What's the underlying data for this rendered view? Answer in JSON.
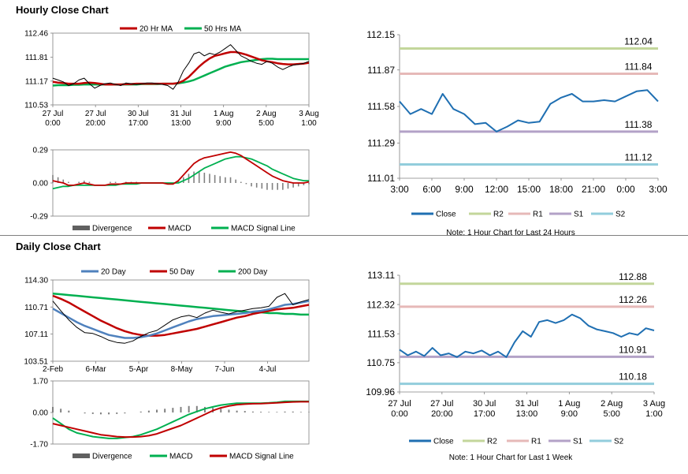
{
  "page": {
    "title_hourly": "Hourly Close Chart",
    "title_daily": "Daily Close Chart"
  },
  "colors": {
    "close": "#1f6fb2",
    "ma_red": "#c00000",
    "ma_green": "#00b050",
    "ma_blue": "#4f81bd",
    "r2": "#c3d69b",
    "r1": "#e6b9b8",
    "s1": "#b3a2c7",
    "s2": "#92cddc",
    "divergence": "#808080"
  },
  "chart_data": [
    {
      "id": "hourly_price_ma",
      "type": "line",
      "legend": [
        "20 Hr MA",
        "50 Hrs MA"
      ],
      "yticks": [
        "112.46",
        "111.81",
        "111.17",
        "110.53"
      ],
      "ylim": [
        110.53,
        112.46
      ],
      "xticks": [
        [
          "27 Jul",
          "0:00"
        ],
        [
          "27 Jul",
          "20:00"
        ],
        [
          "30 Jul",
          "17:00"
        ],
        [
          "31 Jul",
          "13:00"
        ],
        [
          "1 Aug",
          "9:00"
        ],
        [
          "2 Aug",
          "5:00"
        ],
        [
          "3 Aug",
          "1:00"
        ]
      ],
      "series": [
        {
          "name": "Close",
          "values": [
            111.25,
            111.2,
            111.15,
            111.05,
            111.1,
            111.2,
            111.25,
            111.1,
            110.98,
            111.05,
            111.1,
            111.12,
            111.08,
            111.05,
            111.12,
            111.1,
            111.08,
            111.1,
            111.12,
            111.12,
            111.1,
            111.08,
            111.05,
            110.95,
            111.15,
            111.45,
            111.65,
            111.9,
            111.95,
            111.85,
            111.92,
            111.88,
            111.95,
            112.05,
            112.15,
            112.0,
            111.85,
            111.78,
            111.7,
            111.65,
            111.62,
            111.7,
            111.65,
            111.55,
            111.48,
            111.55,
            111.6,
            111.62,
            111.65,
            111.7
          ]
        },
        {
          "name": "20 Hr MA",
          "values": [
            111.15,
            111.13,
            111.12,
            111.1,
            111.1,
            111.1,
            111.12,
            111.13,
            111.12,
            111.1,
            111.08,
            111.08,
            111.08,
            111.08,
            111.09,
            111.09,
            111.1,
            111.1,
            111.1,
            111.1,
            111.1,
            111.1,
            111.1,
            111.1,
            111.12,
            111.18,
            111.28,
            111.42,
            111.56,
            111.68,
            111.78,
            111.85,
            111.88,
            111.92,
            111.95,
            111.95,
            111.92,
            111.88,
            111.83,
            111.78,
            111.73,
            111.7,
            111.68,
            111.65,
            111.63,
            111.62,
            111.62,
            111.63,
            111.64,
            111.66
          ]
        },
        {
          "name": "50 Hrs MA",
          "values": [
            111.05,
            111.06,
            111.06,
            111.06,
            111.07,
            111.07,
            111.08,
            111.08,
            111.08,
            111.08,
            111.08,
            111.08,
            111.08,
            111.08,
            111.08,
            111.08,
            111.08,
            111.09,
            111.09,
            111.09,
            111.09,
            111.1,
            111.1,
            111.1,
            111.11,
            111.13,
            111.16,
            111.2,
            111.26,
            111.32,
            111.38,
            111.44,
            111.5,
            111.56,
            111.6,
            111.64,
            111.68,
            111.7,
            111.72,
            111.74,
            111.76,
            111.77,
            111.77,
            111.76,
            111.76,
            111.76,
            111.76,
            111.76,
            111.76,
            111.76
          ]
        }
      ]
    },
    {
      "id": "hourly_macd",
      "type": "line",
      "legend": [
        "Divergence",
        "MACD",
        "MACD Signal Line"
      ],
      "yticks": [
        "0.29",
        "0.00",
        "-0.29"
      ],
      "ylim": [
        -0.29,
        0.29
      ],
      "series": [
        {
          "name": "MACD",
          "values": [
            0.02,
            0.01,
            0.0,
            -0.02,
            -0.02,
            -0.01,
            0.0,
            -0.01,
            -0.02,
            -0.02,
            -0.02,
            -0.01,
            -0.01,
            -0.01,
            0.0,
            0.0,
            0.0,
            0.0,
            0.0,
            0.0,
            0.0,
            0.0,
            -0.01,
            -0.01,
            0.02,
            0.07,
            0.12,
            0.17,
            0.2,
            0.22,
            0.23,
            0.24,
            0.25,
            0.26,
            0.27,
            0.26,
            0.24,
            0.21,
            0.18,
            0.15,
            0.12,
            0.09,
            0.06,
            0.04,
            0.02,
            0.01,
            0.0,
            0.0,
            0.0,
            0.01
          ]
        },
        {
          "name": "MACD Signal Line",
          "values": [
            -0.05,
            -0.04,
            -0.03,
            -0.03,
            -0.02,
            -0.02,
            -0.02,
            -0.02,
            -0.02,
            -0.02,
            -0.02,
            -0.02,
            -0.02,
            -0.01,
            -0.01,
            -0.01,
            -0.01,
            0.0,
            0.0,
            0.0,
            0.0,
            0.0,
            0.0,
            0.0,
            0.0,
            0.02,
            0.04,
            0.07,
            0.1,
            0.13,
            0.15,
            0.17,
            0.19,
            0.21,
            0.22,
            0.23,
            0.23,
            0.22,
            0.21,
            0.19,
            0.17,
            0.15,
            0.12,
            0.1,
            0.08,
            0.06,
            0.04,
            0.03,
            0.02,
            0.02
          ]
        },
        {
          "name": "Divergence",
          "values": [
            0.07,
            0.05,
            0.03,
            0.01,
            0.0,
            0.01,
            0.02,
            0.01,
            0.0,
            0.0,
            0.0,
            0.01,
            0.01,
            0.0,
            0.01,
            0.01,
            0.01,
            0.0,
            0.0,
            0.0,
            0.0,
            0.0,
            -0.01,
            -0.01,
            0.02,
            0.05,
            0.08,
            0.1,
            0.1,
            0.09,
            0.08,
            0.07,
            0.06,
            0.05,
            0.05,
            0.03,
            0.01,
            -0.01,
            -0.03,
            -0.04,
            -0.05,
            -0.06,
            -0.06,
            -0.06,
            -0.06,
            -0.05,
            -0.04,
            -0.03,
            -0.02,
            -0.01
          ]
        }
      ]
    },
    {
      "id": "hourly_levels",
      "type": "line",
      "yticks": [
        "112.15",
        "111.87",
        "111.58",
        "111.29",
        "111.01"
      ],
      "ylim": [
        111.01,
        112.15
      ],
      "xticks": [
        "3:00",
        "6:00",
        "9:00",
        "12:00",
        "15:00",
        "18:00",
        "21:00",
        "0:00",
        "3:00"
      ],
      "legend": [
        "Close",
        "R2",
        "R1",
        "S1",
        "S2"
      ],
      "levels": [
        {
          "name": "R2",
          "value": 112.04,
          "label": "112.04"
        },
        {
          "name": "R1",
          "value": 111.84,
          "label": "111.84"
        },
        {
          "name": "S1",
          "value": 111.38,
          "label": "111.38"
        },
        {
          "name": "S2",
          "value": 111.12,
          "label": "111.12"
        }
      ],
      "note": "Note: 1 Hour Chart for Last 24 Hours",
      "series": [
        {
          "name": "Close",
          "values": [
            111.62,
            111.52,
            111.56,
            111.52,
            111.68,
            111.56,
            111.52,
            111.44,
            111.45,
            111.38,
            111.42,
            111.47,
            111.45,
            111.46,
            111.6,
            111.65,
            111.68,
            111.62,
            111.62,
            111.63,
            111.62,
            111.66,
            111.7,
            111.71,
            111.62
          ]
        }
      ]
    },
    {
      "id": "daily_price_ma",
      "type": "line",
      "legend": [
        "20 Day",
        "50 Day",
        "200 Day"
      ],
      "yticks": [
        "114.30",
        "110.71",
        "107.11",
        "103.51"
      ],
      "ylim": [
        103.51,
        114.3
      ],
      "xticks": [
        "2-Feb",
        "6-Mar",
        "5-Apr",
        "8-May",
        "7-Jun",
        "4-Jul"
      ],
      "series": [
        {
          "name": "Close",
          "values": [
            111.5,
            110.2,
            109.0,
            108.0,
            107.3,
            107.2,
            106.8,
            106.3,
            106.0,
            105.9,
            106.2,
            106.8,
            107.3,
            107.6,
            108.3,
            109.0,
            109.4,
            109.6,
            109.3,
            109.9,
            110.3,
            110.0,
            109.8,
            110.1,
            110.3,
            110.5,
            110.6,
            110.8,
            112.0,
            112.5,
            111.0,
            111.4,
            111.7
          ]
        },
        {
          "name": "20 Day",
          "values": [
            110.5,
            109.9,
            109.3,
            108.7,
            108.2,
            107.8,
            107.4,
            107.0,
            106.8,
            106.6,
            106.6,
            106.7,
            106.9,
            107.2,
            107.6,
            108.0,
            108.4,
            108.8,
            109.1,
            109.3,
            109.5,
            109.6,
            109.7,
            109.8,
            109.9,
            110.1,
            110.2,
            110.4,
            110.7,
            111.0,
            111.1,
            111.3,
            111.5
          ]
        },
        {
          "name": "50 Day",
          "values": [
            112.2,
            111.8,
            111.3,
            110.7,
            110.1,
            109.5,
            108.9,
            108.4,
            107.9,
            107.5,
            107.2,
            107.0,
            106.9,
            106.9,
            107.0,
            107.2,
            107.4,
            107.6,
            107.8,
            108.1,
            108.4,
            108.7,
            109.0,
            109.3,
            109.5,
            109.8,
            110.0,
            110.2,
            110.4,
            110.5,
            110.6,
            110.8,
            111.0
          ]
        },
        {
          "name": "200 Day",
          "values": [
            112.5,
            112.4,
            112.3,
            112.2,
            112.1,
            112.0,
            111.9,
            111.8,
            111.7,
            111.6,
            111.5,
            111.4,
            111.3,
            111.2,
            111.1,
            111.0,
            110.9,
            110.8,
            110.7,
            110.6,
            110.5,
            110.4,
            110.3,
            110.2,
            110.1,
            110.0,
            110.0,
            109.9,
            109.9,
            109.8,
            109.8,
            109.7,
            109.7
          ]
        }
      ]
    },
    {
      "id": "daily_macd",
      "type": "line",
      "legend": [
        "Divergence",
        "MACD",
        "MACD Signal Line"
      ],
      "yticks": [
        "1.70",
        "0.00",
        "-1.70"
      ],
      "ylim": [
        -1.7,
        1.7
      ],
      "series": [
        {
          "name": "MACD",
          "values": [
            -0.3,
            -0.6,
            -0.9,
            -1.1,
            -1.2,
            -1.3,
            -1.35,
            -1.4,
            -1.4,
            -1.35,
            -1.3,
            -1.2,
            -1.05,
            -0.9,
            -0.7,
            -0.5,
            -0.3,
            -0.1,
            0.05,
            0.2,
            0.3,
            0.4,
            0.45,
            0.5,
            0.5,
            0.5,
            0.5,
            0.52,
            0.55,
            0.6,
            0.6,
            0.6,
            0.6
          ]
        },
        {
          "name": "MACD Signal Line",
          "values": [
            -0.6,
            -0.7,
            -0.8,
            -0.9,
            -1.0,
            -1.1,
            -1.2,
            -1.25,
            -1.3,
            -1.32,
            -1.32,
            -1.3,
            -1.25,
            -1.15,
            -1.0,
            -0.85,
            -0.7,
            -0.5,
            -0.3,
            -0.1,
            0.1,
            0.25,
            0.35,
            0.42,
            0.45,
            0.47,
            0.48,
            0.5,
            0.52,
            0.55,
            0.57,
            0.58,
            0.58
          ]
        },
        {
          "name": "Divergence",
          "values": [
            0.3,
            0.2,
            0.1,
            0.0,
            -0.05,
            -0.08,
            -0.1,
            -0.1,
            -0.08,
            -0.05,
            0.0,
            0.05,
            0.1,
            0.15,
            0.2,
            0.25,
            0.3,
            0.35,
            0.35,
            0.3,
            0.25,
            0.2,
            0.15,
            0.1,
            0.08,
            0.05,
            0.04,
            0.03,
            0.03,
            0.05,
            0.05,
            0.03,
            0.02
          ]
        }
      ]
    },
    {
      "id": "daily_levels",
      "type": "line",
      "yticks": [
        "113.11",
        "112.32",
        "111.53",
        "110.75",
        "109.96"
      ],
      "ylim": [
        109.96,
        113.11
      ],
      "xticks": [
        [
          "27 Jul",
          "0:00"
        ],
        [
          "27 Jul",
          "20:00"
        ],
        [
          "30 Jul",
          "17:00"
        ],
        [
          "31 Jul",
          "13:00"
        ],
        [
          "1 Aug",
          "9:00"
        ],
        [
          "2 Aug",
          "5:00"
        ],
        [
          "3 Aug",
          "1:00"
        ]
      ],
      "legend": [
        "Close",
        "R2",
        "R1",
        "S1",
        "S2"
      ],
      "levels": [
        {
          "name": "R2",
          "value": 112.88,
          "label": "112.88"
        },
        {
          "name": "R1",
          "value": 112.26,
          "label": "112.26"
        },
        {
          "name": "S1",
          "value": 110.91,
          "label": "110.91"
        },
        {
          "name": "S2",
          "value": 110.18,
          "label": "110.18"
        }
      ],
      "note": "Note: 1 Hour Chart for Last 1 Week",
      "series": [
        {
          "name": "Close",
          "values": [
            111.1,
            110.95,
            111.05,
            110.93,
            111.15,
            110.95,
            111.0,
            110.9,
            111.05,
            111.0,
            111.08,
            110.95,
            111.05,
            110.9,
            111.3,
            111.6,
            111.45,
            111.85,
            111.9,
            111.82,
            111.9,
            112.05,
            111.95,
            111.75,
            111.65,
            111.6,
            111.55,
            111.45,
            111.55,
            111.5,
            111.68,
            111.62
          ]
        }
      ]
    }
  ]
}
